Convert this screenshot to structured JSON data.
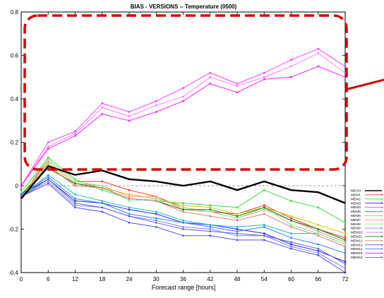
{
  "chart_data": {
    "type": "line",
    "title": "BIAS - VERSIONS -- Temperature (0500)",
    "xlabel": "Forecast range [hours]",
    "ylabel": "",
    "xlim": [
      0,
      72
    ],
    "ylim": [
      -0.4,
      0.8
    ],
    "x_ticks": [
      0,
      6,
      12,
      18,
      24,
      30,
      36,
      42,
      48,
      54,
      60,
      66,
      72
    ],
    "y_ticks": [
      -0.4,
      -0.2,
      0,
      0.2,
      0.4,
      0.6,
      0.8
    ],
    "y_tick_labels": [
      "-0.4",
      "-0.2",
      "0",
      "0.2",
      "0.4",
      "0.6",
      "0.8"
    ],
    "grid": false,
    "zero_reference_line": true,
    "legend_position": "right-bottom-outside",
    "highlight_box_color": "#d40000",
    "x": [
      0,
      6,
      12,
      18,
      24,
      30,
      36,
      42,
      48,
      54,
      60,
      66,
      72
    ],
    "series": [
      {
        "name": "MEAN",
        "color": "#000000",
        "values": [
          -0.06,
          0.09,
          0.05,
          0.07,
          0.03,
          0.02,
          0.0,
          0.02,
          -0.02,
          0.02,
          -0.02,
          -0.03,
          -0.08
        ]
      },
      {
        "name": "MEM1",
        "color": "#ff3030",
        "values": [
          -0.05,
          0.12,
          0.02,
          0.02,
          -0.02,
          -0.05,
          -0.1,
          -0.12,
          -0.13,
          -0.09,
          -0.15,
          -0.2,
          -0.24
        ]
      },
      {
        "name": "MEM2",
        "color": "#40dd40",
        "values": [
          -0.03,
          0.13,
          0.03,
          -0.02,
          -0.06,
          -0.07,
          -0.08,
          -0.09,
          -0.1,
          -0.02,
          -0.07,
          -0.1,
          -0.17
        ]
      },
      {
        "name": "MEM3",
        "color": "#2020ff",
        "values": [
          -0.04,
          0.03,
          -0.07,
          -0.08,
          -0.11,
          -0.13,
          -0.17,
          -0.18,
          -0.2,
          -0.22,
          -0.27,
          -0.3,
          -0.35
        ]
      },
      {
        "name": "MEM4",
        "color": "#ff40ff",
        "values": [
          0.0,
          0.2,
          0.25,
          0.38,
          0.34,
          0.39,
          0.45,
          0.52,
          0.47,
          0.52,
          0.58,
          0.63,
          0.55
        ]
      },
      {
        "name": "MEM5",
        "color": "#22bbbb",
        "values": [
          -0.05,
          0.05,
          -0.04,
          -0.07,
          -0.1,
          -0.12,
          -0.16,
          -0.18,
          -0.19,
          -0.18,
          -0.22,
          -0.22,
          -0.27
        ]
      },
      {
        "name": "MEM6",
        "color": "#cccc00",
        "values": [
          -0.04,
          0.1,
          0.0,
          -0.01,
          -0.04,
          -0.06,
          -0.09,
          -0.1,
          -0.13,
          -0.1,
          -0.14,
          -0.18,
          -0.22
        ]
      },
      {
        "name": "MEM7",
        "color": "#ff9090",
        "values": [
          -0.06,
          0.11,
          0.01,
          0.0,
          -0.05,
          -0.05,
          -0.11,
          -0.12,
          -0.15,
          -0.11,
          -0.16,
          -0.21,
          -0.26
        ]
      },
      {
        "name": "MEM8",
        "color": "#90ee90",
        "values": [
          -0.03,
          0.12,
          0.02,
          0.0,
          -0.07,
          -0.06,
          -0.1,
          -0.12,
          -0.15,
          -0.1,
          -0.18,
          -0.22,
          -0.27
        ]
      },
      {
        "name": "MEM9",
        "color": "#8080ff",
        "values": [
          -0.05,
          0.02,
          -0.09,
          -0.1,
          -0.14,
          -0.16,
          -0.19,
          -0.2,
          -0.23,
          -0.23,
          -0.28,
          -0.31,
          -0.38
        ]
      },
      {
        "name": "MEM10",
        "color": "#ff80ff",
        "values": [
          0.0,
          0.18,
          0.24,
          0.36,
          0.32,
          0.37,
          0.41,
          0.5,
          0.46,
          0.5,
          0.55,
          0.61,
          0.52
        ]
      },
      {
        "name": "MEM11",
        "color": "#008800",
        "values": [
          -0.04,
          0.08,
          0.01,
          -0.01,
          -0.06,
          -0.07,
          -0.11,
          -0.11,
          -0.14,
          -0.1,
          -0.16,
          -0.2,
          -0.25
        ]
      },
      {
        "name": "MEM12",
        "color": "#e08080",
        "values": [
          -0.06,
          0.09,
          0.0,
          -0.01,
          -0.06,
          -0.07,
          -0.12,
          -0.14,
          -0.16,
          -0.13,
          -0.19,
          -0.23,
          -0.28
        ]
      },
      {
        "name": "MEM13",
        "color": "#5050ff",
        "values": [
          -0.05,
          0.01,
          -0.1,
          -0.12,
          -0.17,
          -0.19,
          -0.23,
          -0.23,
          -0.25,
          -0.25,
          -0.29,
          -0.32,
          -0.4
        ]
      },
      {
        "name": "MEM14",
        "color": "#3080ff",
        "values": [
          -0.04,
          0.04,
          -0.06,
          -0.08,
          -0.13,
          -0.15,
          -0.17,
          -0.19,
          -0.21,
          -0.19,
          -0.24,
          -0.27,
          -0.31
        ]
      },
      {
        "name": "MEM15",
        "color": "#ff20ff",
        "values": [
          0.0,
          0.17,
          0.23,
          0.33,
          0.3,
          0.34,
          0.39,
          0.47,
          0.43,
          0.49,
          0.5,
          0.55,
          0.5
        ]
      },
      {
        "name": "MEM16",
        "color": "#6060cc",
        "values": [
          -0.05,
          0.03,
          -0.08,
          -0.1,
          -0.14,
          -0.17,
          -0.2,
          -0.21,
          -0.22,
          -0.23,
          -0.26,
          -0.29,
          -0.36
        ]
      }
    ]
  }
}
